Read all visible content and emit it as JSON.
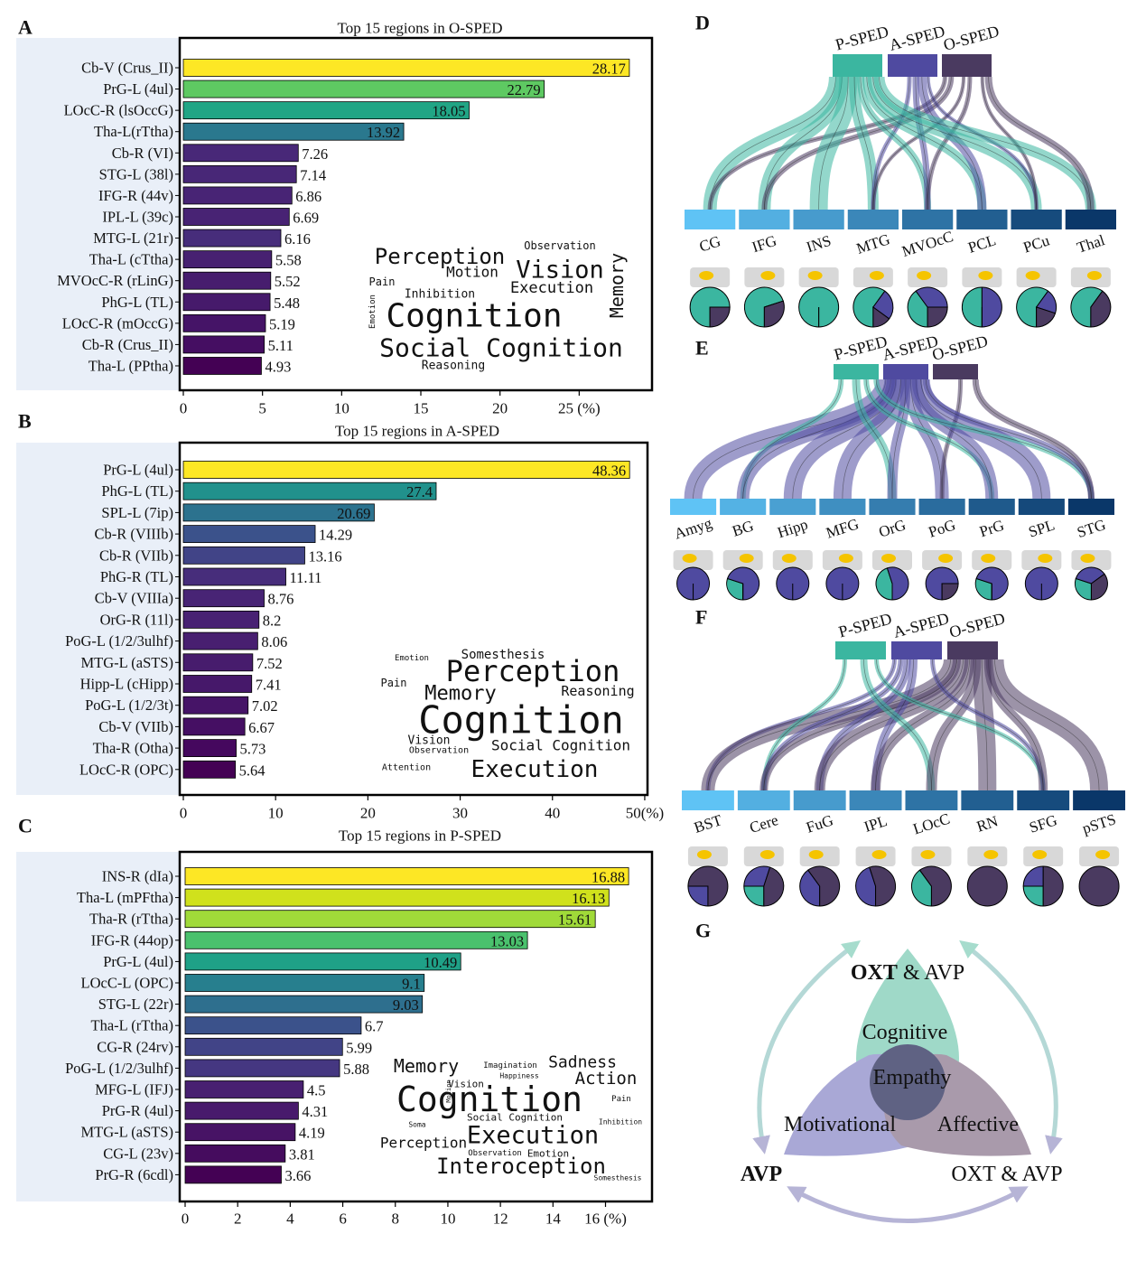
{
  "chart_data": [
    {
      "type": "bar",
      "panel": "A",
      "title": "Top 15 regions in O-SPED",
      "categories": [
        "Cb-V (Crus_II)",
        "PrG-L (4ul)",
        "LOcC-R (lsOccG)",
        "Tha-L(rTtha)",
        "Cb-R (VI)",
        "STG-L (38l)",
        "IFG-R (44v)",
        "IPL-L (39c)",
        "MTG-L (21r)",
        "Tha-L (cTtha)",
        "MVOcC-R (rLinG)",
        "PhG-L (TL)",
        "LOcC-R (mOccG)",
        "Cb-R (Crus_II)",
        "Tha-L (PPtha)"
      ],
      "values": [
        28.17,
        22.79,
        18.05,
        13.92,
        7.26,
        7.14,
        6.86,
        6.69,
        6.16,
        5.58,
        5.52,
        5.48,
        5.19,
        5.11,
        4.93
      ],
      "colors": [
        "#fde725",
        "#5ec962",
        "#21a585",
        "#2a788e",
        "#482878",
        "#482777",
        "#482475",
        "#482374",
        "#472d7b",
        "#472171",
        "#471d6e",
        "#461a6b",
        "#451467",
        "#450e62",
        "#440154"
      ],
      "xlim": [
        0,
        29.6
      ],
      "xticks": [
        0,
        5,
        10,
        15,
        20,
        {
          "value": 25,
          "label": "25 (%)"
        }
      ],
      "wordcloud": [
        "Perception",
        "Observation",
        "Motion",
        "Vision",
        "Memory",
        "Pain",
        "Inhibition",
        "Execution",
        "Emotion",
        "Cognition",
        "Social Cognition",
        "Reasoning"
      ]
    },
    {
      "type": "bar",
      "panel": "B",
      "title": "Top 15 regions in A-SPED",
      "categories": [
        "PrG-L (4ul)",
        "PhG-L (TL)",
        "SPL-L (7ip)",
        "Cb-R (VIIIb)",
        "Cb-R (VIIb)",
        "PhG-R (TL)",
        "Cb-V (VIIIa)",
        "OrG-R (11l)",
        "PoG-L (1/2/3ulhf)",
        "MTG-L (aSTS)",
        "Hipp-L (cHipp)",
        "PoG-L (1/2/3t)",
        "Cb-V (VIIb)",
        "Tha-R (Otha)",
        "LOcC-R (OPC)"
      ],
      "values": [
        48.36,
        27.4,
        20.69,
        14.29,
        13.16,
        11.11,
        8.76,
        8.2,
        8.06,
        7.52,
        7.41,
        7.02,
        6.67,
        5.73,
        5.64
      ],
      "colors": [
        "#fde725",
        "#21918c",
        "#2c728e",
        "#3b528b",
        "#414487",
        "#472d7b",
        "#482475",
        "#482173",
        "#481f70",
        "#471c6d",
        "#46186a",
        "#461467",
        "#450f63",
        "#45085e",
        "#440154"
      ],
      "xlim": [
        0,
        50.3
      ],
      "xticks": [
        0,
        10,
        20,
        30,
        40,
        {
          "value": 50,
          "label": "50(%)"
        }
      ],
      "wordcloud": [
        "Emotion",
        "Somesthesis",
        "Perception",
        "Pain",
        "Memory",
        "Reasoning",
        "Cognition",
        "Vision",
        "Observation",
        "Social Cognition",
        "Attention",
        "Execution"
      ]
    },
    {
      "type": "bar",
      "panel": "C",
      "title": "Top 15 regions in P-SPED",
      "categories": [
        "INS-R (dIa)",
        "Tha-L (mPFtha)",
        "Tha-R (rTtha)",
        "IFG-R (44op)",
        "PrG-L (4ul)",
        "LOcC-L (OPC)",
        "STG-L (22r)",
        "Tha-L (rTtha)",
        "CG-R (24rv)",
        "PoG-L (1/2/3ulhf)",
        "MFG-L (IFJ)",
        "PrG-R (4ul)",
        "MTG-L (aSTS)",
        "CG-L (23v)",
        "PrG-R (6cdl)"
      ],
      "values": [
        16.88,
        16.13,
        15.61,
        13.03,
        10.49,
        9.1,
        9.03,
        6.7,
        5.99,
        5.88,
        4.5,
        4.31,
        4.19,
        3.81,
        3.66
      ],
      "colors": [
        "#fde725",
        "#d0e11c",
        "#a0da39",
        "#4ac16d",
        "#1fa187",
        "#277f8e",
        "#2e6f8e",
        "#3b528b",
        "#414487",
        "#453781",
        "#482071",
        "#481a6c",
        "#471365",
        "#450c5e",
        "#440154"
      ],
      "xlim": [
        0,
        17.77
      ],
      "xticks": [
        0,
        2,
        4,
        6,
        8,
        10,
        12,
        14,
        {
          "value": 16,
          "label": "16 (%)"
        }
      ],
      "wordcloud": [
        "Memory",
        "Imagination",
        "Sadness",
        "Happiness",
        "Action",
        "Vision",
        "Motion",
        "Cognition",
        "Pain",
        "Social Cognition",
        "Inhibition",
        "Soma",
        "Execution",
        "Perception",
        "Observation",
        "Emotion",
        "Interoception",
        "Somesthesis"
      ]
    }
  ],
  "sankeys": [
    {
      "panel": "D",
      "sources": [
        "P-SPED",
        "A-SPED",
        "O-SPED"
      ],
      "source_colors": [
        "#3bb6a0",
        "#4f4aa0",
        "#4a3a60"
      ],
      "targets": [
        "CG",
        "IFG",
        "INS",
        "MTG",
        "MVOcC",
        "PCL",
        "PCu",
        "Thal"
      ],
      "shares": [
        [
          0.75,
          0,
          0.25
        ],
        [
          0.7,
          0,
          0.3
        ],
        [
          1,
          0,
          0
        ],
        [
          0.6,
          0.25,
          0.15
        ],
        [
          0.4,
          0.35,
          0.25
        ],
        [
          0.5,
          0.5,
          0
        ],
        [
          0.6,
          0.2,
          0.2
        ],
        [
          0.6,
          0,
          0.4
        ]
      ]
    },
    {
      "panel": "E",
      "sources": [
        "P-SPED",
        "A-SPED",
        "O-SPED"
      ],
      "source_colors": [
        "#3bb6a0",
        "#4f4aa0",
        "#4a3a60"
      ],
      "targets": [
        "Amyg",
        "BG",
        "Hipp",
        "MFG",
        "OrG",
        "PoG",
        "PrG",
        "SPL",
        "STG"
      ],
      "shares": [
        [
          0,
          1,
          0
        ],
        [
          0.3,
          0.7,
          0
        ],
        [
          0,
          1,
          0
        ],
        [
          0,
          1,
          0
        ],
        [
          0.45,
          0.55,
          0
        ],
        [
          0,
          0.75,
          0.25
        ],
        [
          0.3,
          0.7,
          0
        ],
        [
          0,
          1,
          0
        ],
        [
          0.3,
          0.35,
          0.35
        ]
      ]
    },
    {
      "panel": "F",
      "sources": [
        "P-SPED",
        "A-SPED",
        "O-SPED"
      ],
      "source_colors": [
        "#3bb6a0",
        "#4f4aa0",
        "#4a3a60"
      ],
      "targets": [
        "BST",
        "Cere",
        "FuG",
        "IPL",
        "LOcC",
        "RN",
        "SFG",
        "pSTS"
      ],
      "shares": [
        [
          0,
          0.25,
          0.75
        ],
        [
          0.25,
          0.3,
          0.45
        ],
        [
          0,
          0.4,
          0.6
        ],
        [
          0,
          0.45,
          0.55
        ],
        [
          0.4,
          0,
          0.6
        ],
        [
          0,
          0,
          1
        ],
        [
          0.25,
          0.25,
          0.5
        ],
        [
          0,
          0,
          1
        ]
      ]
    }
  ],
  "diagram": {
    "panel": "G",
    "top_bold": "OXT",
    "top_rest": "& AVP",
    "cognitive": "Cognitive",
    "empathy": "Empathy",
    "motivational": "Motivational",
    "affective": "Affective",
    "left": "AVP",
    "right": "OXT & AVP"
  }
}
